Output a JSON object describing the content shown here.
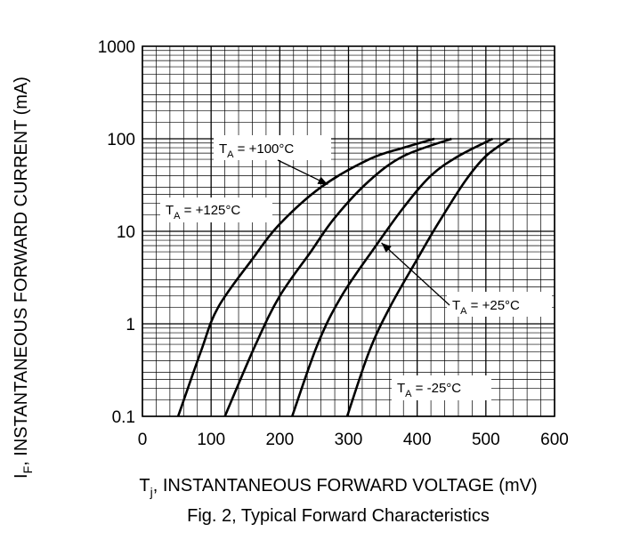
{
  "chart_data": {
    "type": "line",
    "xlabel": {
      "symbol": "T",
      "sub": "j",
      "text": ", INSTANTANEOUS FORWARD VOLTAGE (mV)"
    },
    "ylabel": {
      "symbol": "I",
      "sub": "F",
      "text": ", INSTANTANEOUS FORWARD CURRENT (mA)"
    },
    "caption": "Fig. 2, Typical Forward Characteristics",
    "xlim": [
      0,
      600
    ],
    "ylim": [
      0.1,
      1000
    ],
    "yscale": "log",
    "grid": true,
    "x_ticks": [
      "0",
      "100",
      "200",
      "300",
      "400",
      "500",
      "600"
    ],
    "y_ticks": [
      "0.1",
      "1",
      "10",
      "100",
      "1000"
    ],
    "series": [
      {
        "name": "+125°C",
        "points": [
          [
            52,
            0.1
          ],
          [
            85,
            0.5
          ],
          [
            110,
            1.5
          ],
          [
            160,
            5
          ],
          [
            200,
            12
          ],
          [
            260,
            30
          ],
          [
            330,
            60
          ],
          [
            380,
            80
          ],
          [
            425,
            100
          ]
        ]
      },
      {
        "name": "+100°C",
        "points": [
          [
            120,
            0.1
          ],
          [
            165,
            0.6
          ],
          [
            200,
            2
          ],
          [
            245,
            6
          ],
          [
            280,
            14
          ],
          [
            330,
            35
          ],
          [
            380,
            65
          ],
          [
            450,
            100
          ]
        ]
      },
      {
        "name": "+25°C",
        "points": [
          [
            218,
            0.1
          ],
          [
            255,
            0.6
          ],
          [
            290,
            2
          ],
          [
            340,
            7
          ],
          [
            380,
            18
          ],
          [
            420,
            40
          ],
          [
            460,
            65
          ],
          [
            510,
            100
          ]
        ]
      },
      {
        "name": "-25°C",
        "points": [
          [
            298,
            0.1
          ],
          [
            330,
            0.5
          ],
          [
            360,
            1.5
          ],
          [
            400,
            5
          ],
          [
            430,
            12
          ],
          [
            470,
            35
          ],
          [
            500,
            65
          ],
          [
            535,
            100
          ]
        ]
      }
    ],
    "annotations": [
      {
        "sym": "T",
        "sub": "A",
        "text": " = +100°C",
        "series": "+100°C",
        "target": [
          270,
          32
        ]
      },
      {
        "sym": "T",
        "sub": "A",
        "text": " = +125°C",
        "series": "+125°C"
      },
      {
        "sym": "T",
        "sub": "A",
        "text": " = +25°C",
        "series": "+25°C",
        "target": [
          348,
          7.5
        ]
      },
      {
        "sym": "T",
        "sub": "A",
        "text": " = -25°C",
        "series": "-25°C"
      }
    ]
  }
}
